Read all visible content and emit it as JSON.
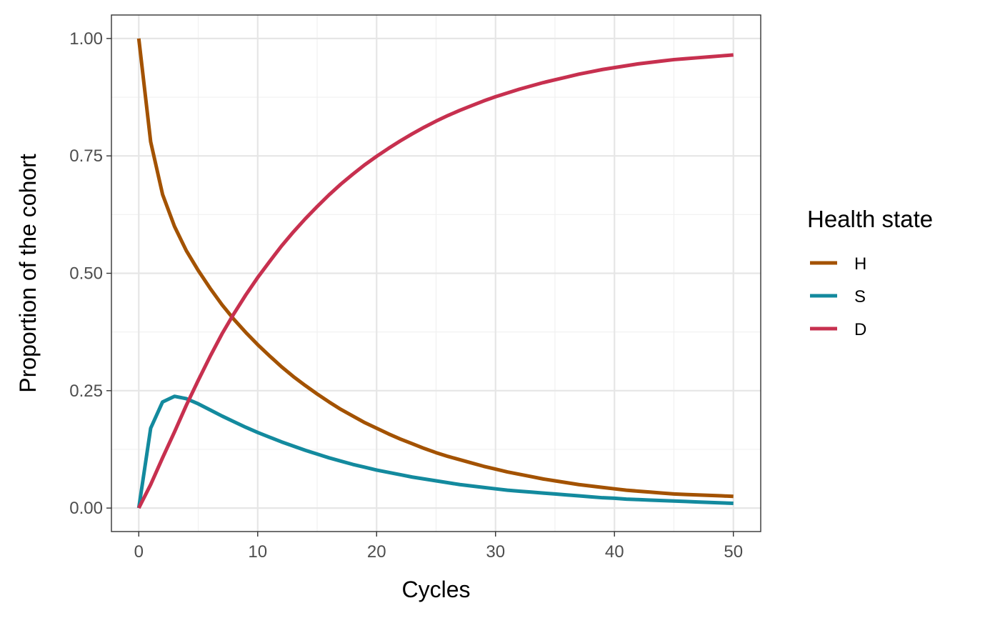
{
  "chart_data": {
    "type": "line",
    "title": "",
    "xlabel": "Cycles",
    "ylabel": "Proportion of the cohort",
    "xlim": [
      -2.3,
      52.3
    ],
    "ylim": [
      -0.05,
      1.05
    ],
    "x_ticks": [
      0,
      10,
      20,
      30,
      40,
      50
    ],
    "x_tick_labels": [
      "0",
      "10",
      "20",
      "30",
      "40",
      "50"
    ],
    "x_minor_ticks": [
      5,
      15,
      25,
      35,
      45
    ],
    "y_ticks": [
      0,
      0.25,
      0.5,
      0.75,
      1.0
    ],
    "y_tick_labels": [
      "0.00",
      "0.25",
      "0.50",
      "0.75",
      "1.00"
    ],
    "y_minor_ticks": [
      0.125,
      0.375,
      0.625,
      0.875
    ],
    "grid": true,
    "legend": {
      "title": "Health state",
      "position": "right"
    },
    "x": [
      0,
      1,
      2,
      3,
      4,
      5,
      6,
      7,
      8,
      9,
      10,
      11,
      12,
      13,
      14,
      15,
      16,
      17,
      18,
      19,
      20,
      21,
      22,
      23,
      24,
      25,
      26,
      27,
      28,
      29,
      30,
      31,
      32,
      33,
      34,
      35,
      36,
      37,
      38,
      39,
      40,
      41,
      42,
      43,
      44,
      45,
      46,
      47,
      48,
      49,
      50
    ],
    "series": [
      {
        "name": "H",
        "color": "#A35200",
        "values": [
          1.0,
          0.78,
          0.668,
          0.6,
          0.548,
          0.506,
          0.468,
          0.433,
          0.402,
          0.374,
          0.348,
          0.324,
          0.301,
          0.28,
          0.261,
          0.243,
          0.226,
          0.21,
          0.196,
          0.182,
          0.17,
          0.158,
          0.147,
          0.137,
          0.127,
          0.118,
          0.11,
          0.103,
          0.096,
          0.089,
          0.083,
          0.077,
          0.072,
          0.067,
          0.062,
          0.058,
          0.054,
          0.05,
          0.047,
          0.044,
          0.041,
          0.038,
          0.036,
          0.034,
          0.032,
          0.03,
          0.029,
          0.028,
          0.027,
          0.026,
          0.025
        ]
      },
      {
        "name": "S",
        "color": "#138A9E",
        "values": [
          0.0,
          0.17,
          0.226,
          0.238,
          0.233,
          0.222,
          0.209,
          0.196,
          0.184,
          0.172,
          0.161,
          0.151,
          0.141,
          0.132,
          0.123,
          0.115,
          0.107,
          0.1,
          0.093,
          0.087,
          0.081,
          0.076,
          0.071,
          0.066,
          0.062,
          0.058,
          0.054,
          0.05,
          0.047,
          0.044,
          0.041,
          0.038,
          0.036,
          0.034,
          0.032,
          0.03,
          0.028,
          0.026,
          0.024,
          0.022,
          0.021,
          0.019,
          0.018,
          0.017,
          0.016,
          0.015,
          0.014,
          0.013,
          0.012,
          0.011,
          0.01
        ]
      },
      {
        "name": "D",
        "color": "#C7304F",
        "values": [
          0.0,
          0.05,
          0.107,
          0.162,
          0.219,
          0.272,
          0.323,
          0.371,
          0.414,
          0.454,
          0.491,
          0.525,
          0.558,
          0.588,
          0.616,
          0.642,
          0.667,
          0.69,
          0.711,
          0.731,
          0.749,
          0.766,
          0.782,
          0.797,
          0.811,
          0.824,
          0.836,
          0.847,
          0.857,
          0.867,
          0.876,
          0.884,
          0.892,
          0.899,
          0.906,
          0.912,
          0.918,
          0.924,
          0.929,
          0.934,
          0.938,
          0.942,
          0.946,
          0.949,
          0.952,
          0.955,
          0.957,
          0.959,
          0.961,
          0.963,
          0.965
        ]
      }
    ]
  }
}
